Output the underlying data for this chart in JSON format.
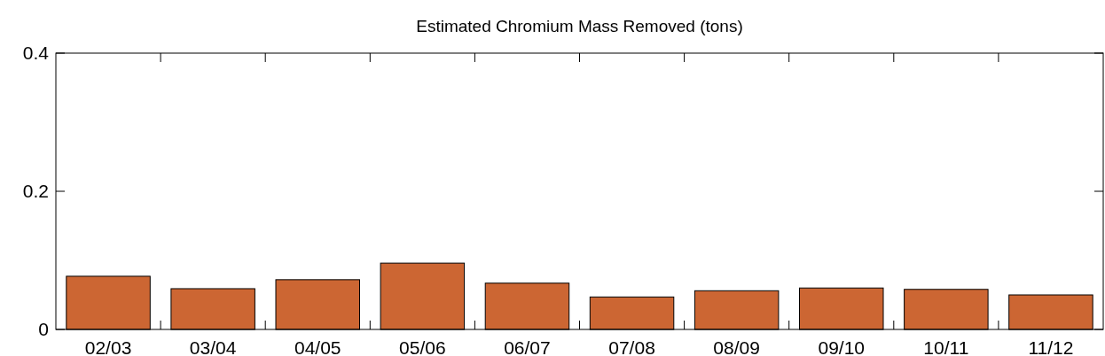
{
  "chart_data": {
    "type": "bar",
    "title": "Estimated Chromium Mass Removed (tons)",
    "categories": [
      "02/03",
      "03/04",
      "04/05",
      "05/06",
      "06/07",
      "07/08",
      "08/09",
      "09/10",
      "10/11",
      "11/12"
    ],
    "values": [
      0.077,
      0.059,
      0.072,
      0.096,
      0.067,
      0.047,
      0.056,
      0.06,
      0.058,
      0.05
    ],
    "color": "#cc6633",
    "ylim": [
      0,
      0.4
    ],
    "yticks": [
      0,
      0.2,
      0.4
    ],
    "grid": false
  }
}
